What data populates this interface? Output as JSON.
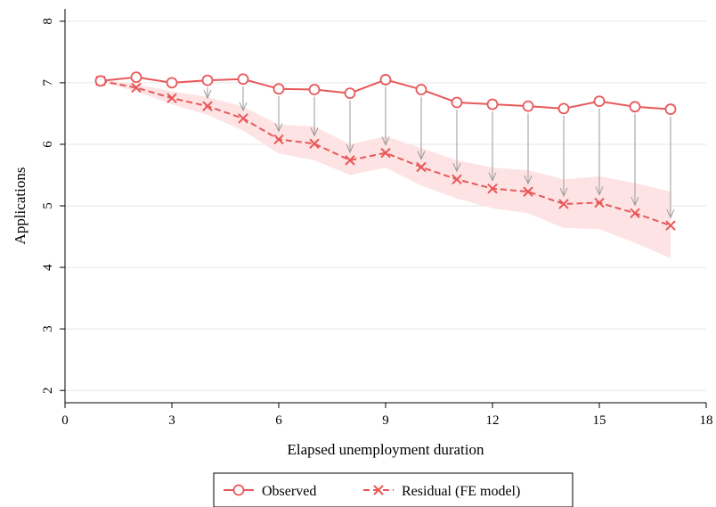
{
  "chart_data": {
    "type": "line",
    "title": "",
    "xlabel": "Elapsed unemployment duration",
    "ylabel": "Applications",
    "xlim": [
      0,
      18
    ],
    "ylim": [
      1.8,
      8.2
    ],
    "xticks": [
      0,
      3,
      6,
      9,
      12,
      15,
      18
    ],
    "yticks": [
      2,
      3,
      4,
      5,
      6,
      7,
      8
    ],
    "grid": "horizontal",
    "legend_position": "bottom",
    "x": [
      1,
      2,
      3,
      4,
      5,
      6,
      7,
      8,
      9,
      10,
      11,
      12,
      13,
      14,
      15,
      16,
      17
    ],
    "series": [
      {
        "name": "Observed",
        "color": "#e8585a",
        "marker": "circle-hollow",
        "line": "solid",
        "values": [
          7.03,
          7.09,
          7.0,
          7.04,
          7.06,
          6.9,
          6.89,
          6.83,
          7.05,
          6.89,
          6.68,
          6.65,
          6.62,
          6.58,
          6.7,
          6.61,
          6.57
        ]
      },
      {
        "name": "Residual (FE model)",
        "color": "#e8585a",
        "marker": "x",
        "line": "dashed",
        "values": [
          7.03,
          6.92,
          6.75,
          6.62,
          6.42,
          6.08,
          6.01,
          5.74,
          5.86,
          5.63,
          5.43,
          5.28,
          5.23,
          5.03,
          5.05,
          4.88,
          4.68
        ],
        "ci_lower": [
          7.01,
          6.86,
          6.65,
          6.48,
          6.22,
          5.85,
          5.74,
          5.5,
          5.62,
          5.33,
          5.12,
          4.96,
          4.88,
          4.64,
          4.62,
          4.4,
          4.15
        ],
        "ci_upper": [
          7.05,
          6.98,
          6.86,
          6.77,
          6.61,
          6.32,
          6.29,
          6.0,
          6.13,
          5.94,
          5.74,
          5.62,
          5.58,
          5.43,
          5.48,
          5.37,
          5.23
        ],
        "ci_fill": "#fde3e3"
      }
    ],
    "annotations": "grey arrows from each Observed point down to the corresponding Residual point"
  }
}
